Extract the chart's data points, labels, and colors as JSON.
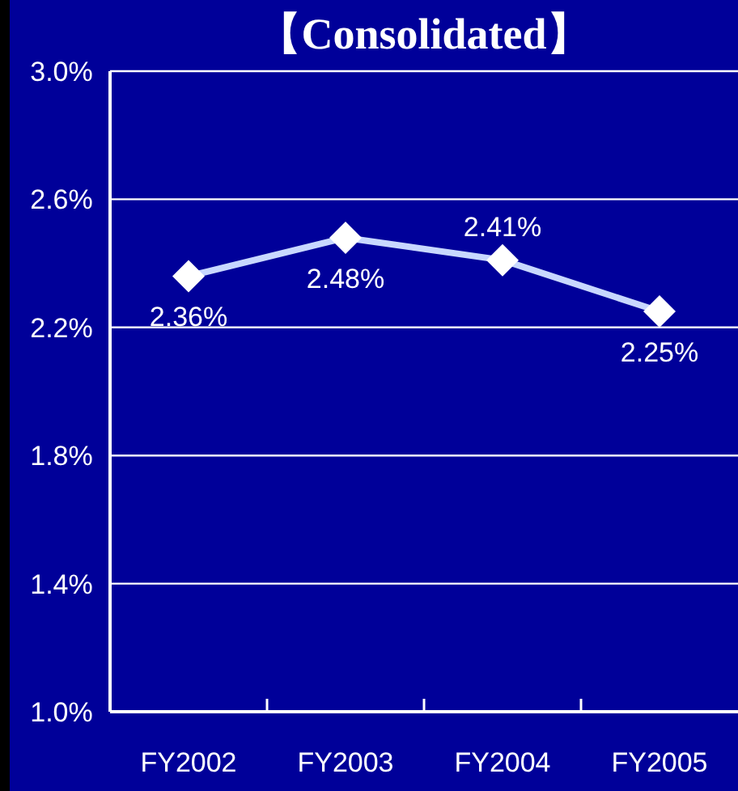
{
  "chart_data": {
    "type": "line",
    "title": "【Consolidated】",
    "categories": [
      "FY2002",
      "FY2003",
      "FY2004",
      "FY2005"
    ],
    "series": [
      {
        "color": "#c8d8ff",
        "values": [
          2.36,
          2.48,
          2.41,
          2.25
        ],
        "value_labels": [
          "2.36%",
          "2.48%",
          "2.41%",
          "2.25%"
        ]
      }
    ],
    "ylim": [
      1.0,
      3.0
    ],
    "yticks": [
      {
        "value": 1.0,
        "label": "1.0%"
      },
      {
        "value": 1.4,
        "label": "1.4%"
      },
      {
        "value": 1.8,
        "label": "1.8%"
      },
      {
        "value": 2.2,
        "label": "2.2%"
      },
      {
        "value": 2.6,
        "label": "2.6%"
      },
      {
        "value": 3.0,
        "label": "3.0%"
      }
    ],
    "grid": "y",
    "marker": "diamond",
    "line_style": "solid"
  }
}
